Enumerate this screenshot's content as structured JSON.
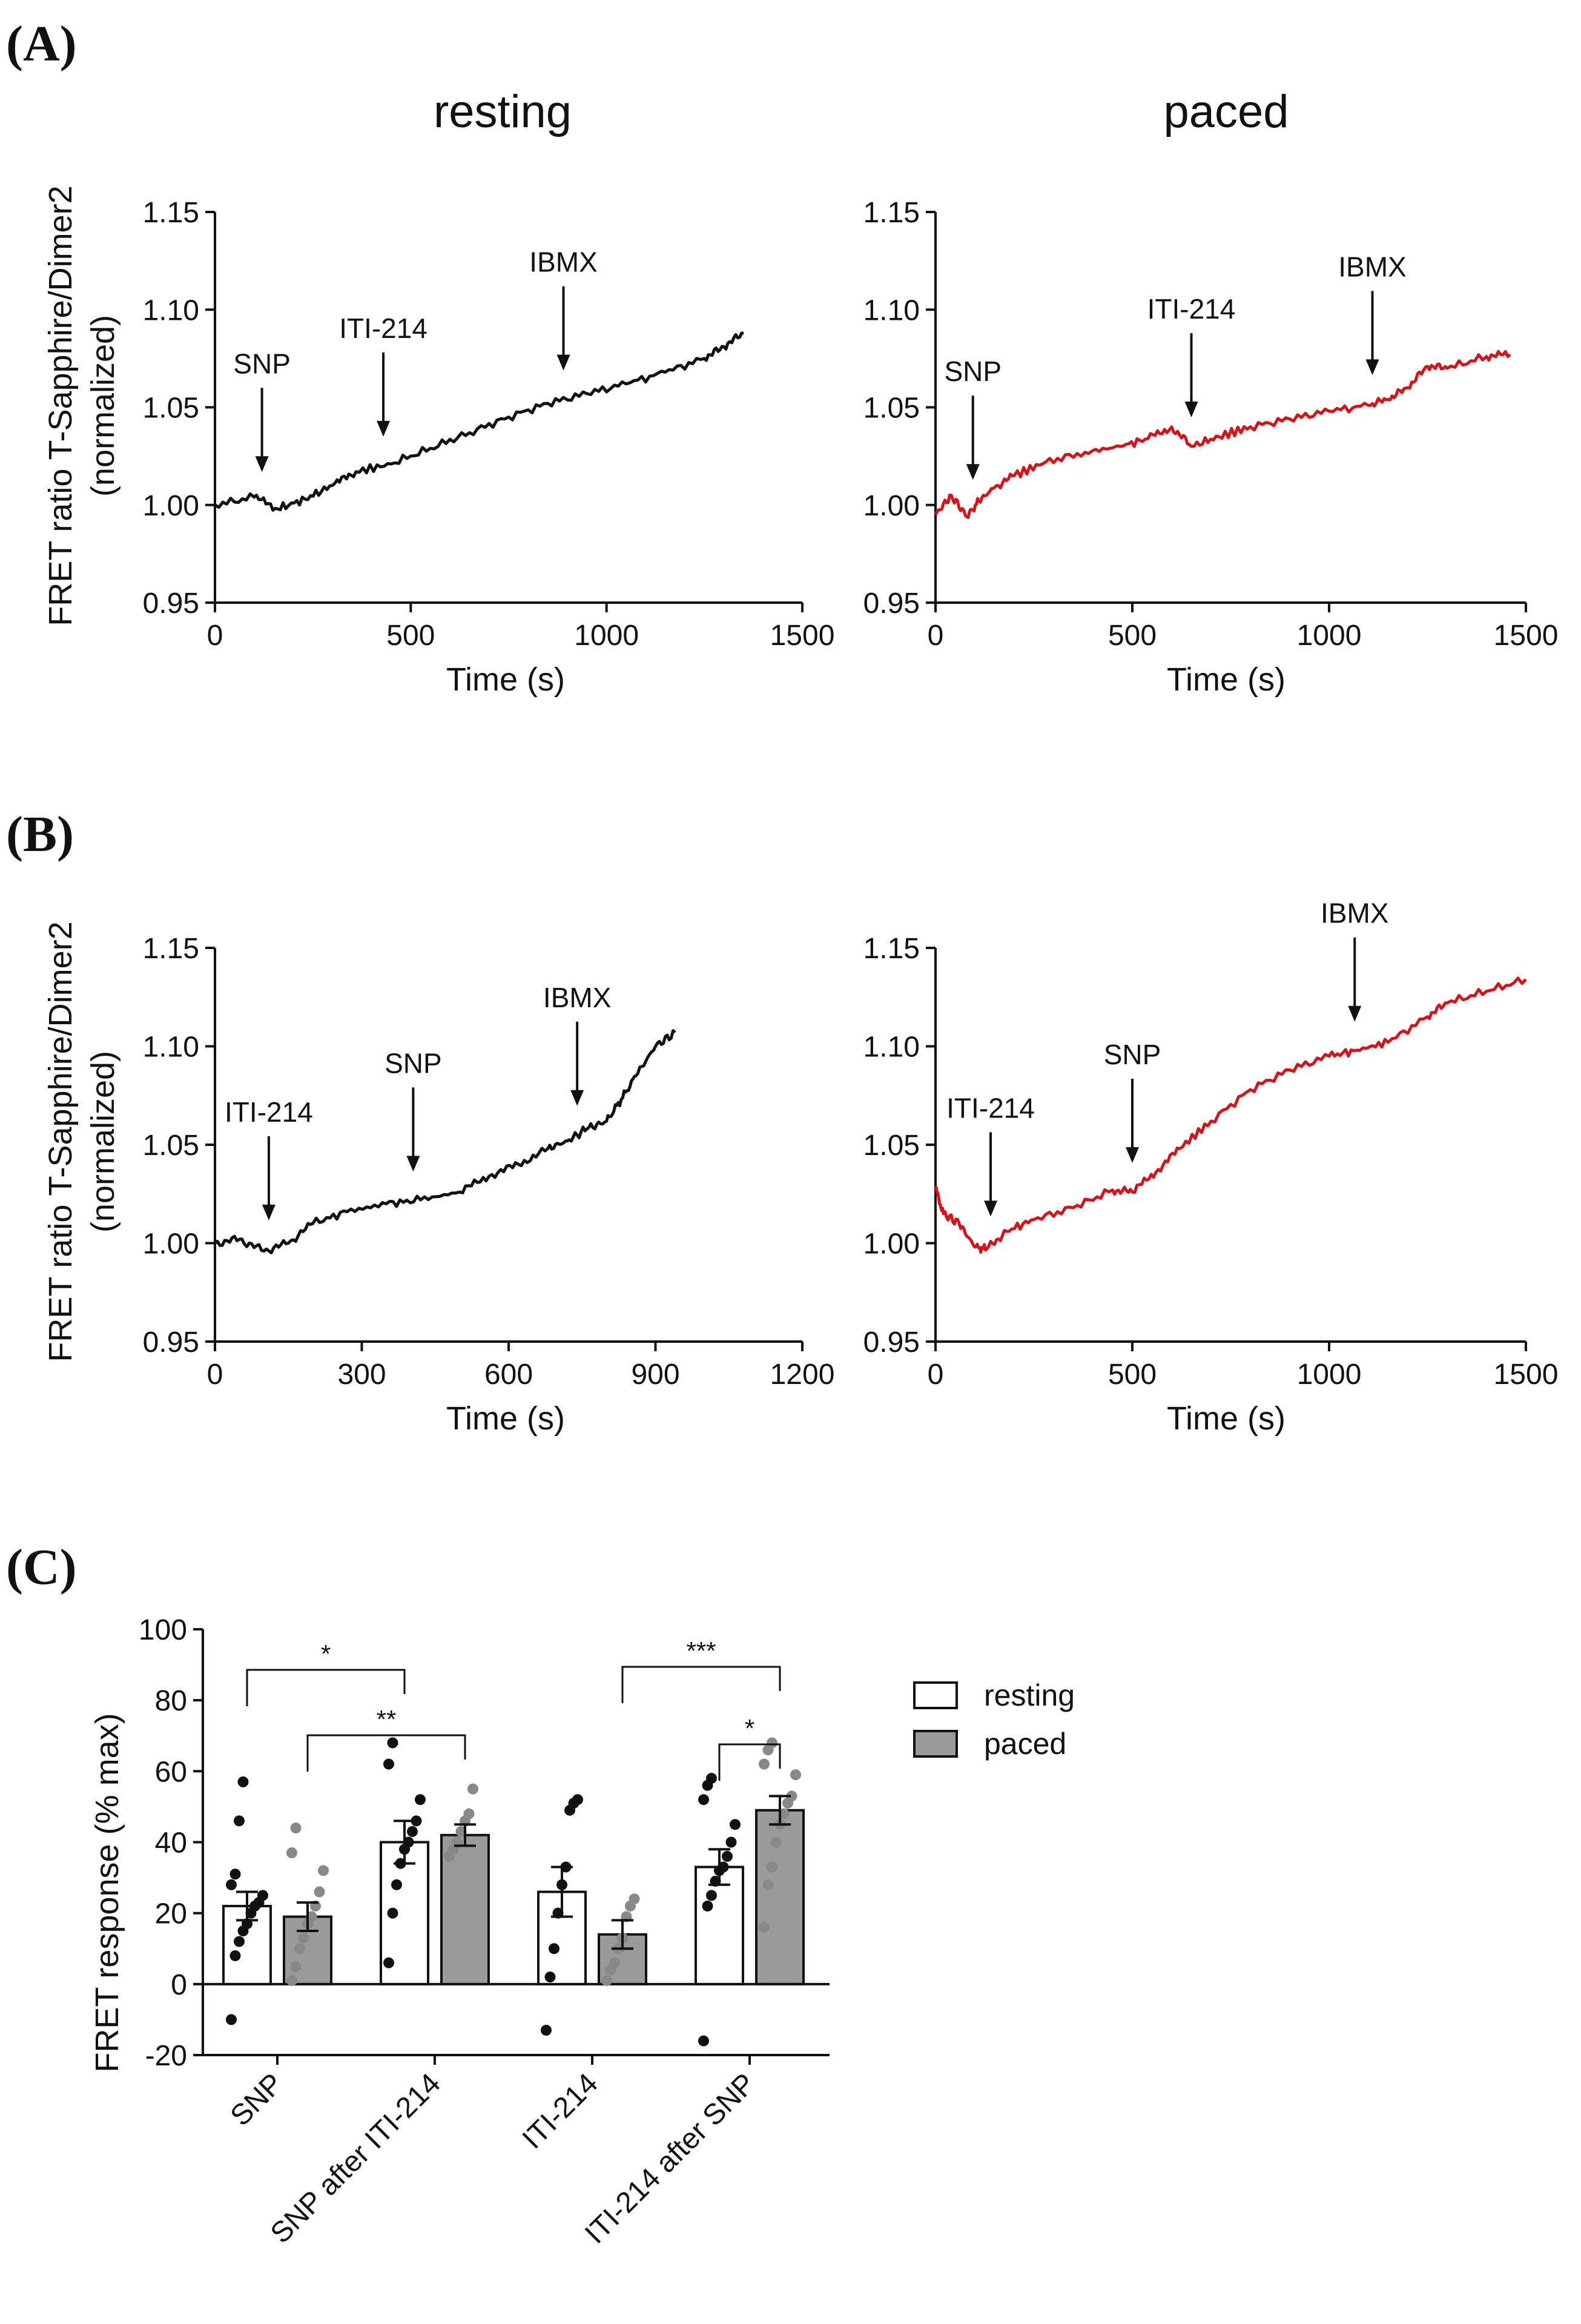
{
  "panel_labels": {
    "A": "(A)",
    "B": "(B)",
    "C": "(C)"
  },
  "condition_titles": {
    "left": "resting",
    "right": "paced"
  },
  "axis_text": {
    "fret_ylabel_1": "FRET ratio T-Sapphire/Dimer2",
    "fret_ylabel_2": "(normalized)",
    "time_xlabel": "Time (s)",
    "response_ylabel": "FRET response (% max)"
  },
  "chart_data": [
    {
      "id": "A_resting",
      "type": "line",
      "panel": "A",
      "condition": "resting",
      "xlabel": "Time (s)",
      "ylabel": "FRET ratio T-Sapphire/Dimer2 (normalized)",
      "xlim": [
        0,
        1500
      ],
      "ylim": [
        0.95,
        1.15
      ],
      "xticks": [
        "0",
        "500",
        "1000",
        "1500"
      ],
      "yticks": [
        "0.95",
        "1.00",
        "1.05",
        "1.10",
        "1.15"
      ],
      "color": "#111111",
      "series": [
        {
          "name": "resting",
          "x": [
            0,
            100,
            160,
            230,
            300,
            360,
            450,
            550,
            650,
            750,
            850,
            950,
            1050,
            1150,
            1250,
            1300,
            1350
          ],
          "y": [
            1.0,
            1.004,
            0.998,
            1.003,
            1.01,
            1.017,
            1.021,
            1.029,
            1.037,
            1.045,
            1.052,
            1.057,
            1.062,
            1.068,
            1.075,
            1.081,
            1.088
          ]
        }
      ],
      "annotations": [
        {
          "text": "SNP",
          "x": 120
        },
        {
          "text": "ITI-214",
          "x": 430
        },
        {
          "text": "IBMX",
          "x": 890
        }
      ]
    },
    {
      "id": "A_paced",
      "type": "line",
      "panel": "A",
      "condition": "paced",
      "xlabel": "Time (s)",
      "ylabel": "",
      "xlim": [
        0,
        1500
      ],
      "ylim": [
        0.95,
        1.15
      ],
      "xticks": [
        "0",
        "500",
        "1000",
        "1500"
      ],
      "yticks": [
        "0.95",
        "1.00",
        "1.05",
        "1.10",
        "1.15"
      ],
      "color": "#d0161c",
      "series": [
        {
          "name": "paced",
          "x": [
            0,
            40,
            80,
            110,
            150,
            200,
            280,
            380,
            470,
            540,
            600,
            650,
            720,
            800,
            900,
            1000,
            1100,
            1150,
            1200,
            1250,
            1300,
            1400,
            1460
          ],
          "y": [
            0.995,
            1.005,
            0.994,
            1.002,
            1.009,
            1.015,
            1.022,
            1.027,
            1.03,
            1.034,
            1.04,
            1.03,
            1.035,
            1.04,
            1.044,
            1.048,
            1.051,
            1.054,
            1.06,
            1.071,
            1.07,
            1.076,
            1.077
          ]
        }
      ],
      "annotations": [
        {
          "text": "SNP",
          "x": 95
        },
        {
          "text": "ITI-214",
          "x": 650
        },
        {
          "text": "IBMX",
          "x": 1110
        }
      ]
    },
    {
      "id": "B_resting",
      "type": "line",
      "panel": "B",
      "condition": "resting",
      "xlabel": "Time (s)",
      "ylabel": "FRET ratio T-Sapphire/Dimer2 (normalized)",
      "xlim": [
        0,
        1200
      ],
      "ylim": [
        0.95,
        1.15
      ],
      "xticks": [
        "0",
        "300",
        "600",
        "900",
        "1200"
      ],
      "yticks": [
        "0.95",
        "1.00",
        "1.05",
        "1.10",
        "1.15"
      ],
      "color": "#111111",
      "series": [
        {
          "name": "resting",
          "x": [
            0,
            50,
            100,
            150,
            200,
            270,
            350,
            420,
            500,
            560,
            620,
            680,
            720,
            760,
            800,
            830,
            860,
            900,
            940
          ],
          "y": [
            1.0,
            1.002,
            0.996,
            1.0,
            1.01,
            1.016,
            1.02,
            1.022,
            1.026,
            1.034,
            1.04,
            1.048,
            1.052,
            1.058,
            1.062,
            1.073,
            1.085,
            1.1,
            1.107
          ]
        }
      ],
      "annotations": [
        {
          "text": "ITI-214",
          "x": 110
        },
        {
          "text": "SNP",
          "x": 405
        },
        {
          "text": "IBMX",
          "x": 740
        }
      ]
    },
    {
      "id": "B_paced",
      "type": "line",
      "panel": "B",
      "condition": "paced",
      "xlabel": "Time (s)",
      "ylabel": "",
      "xlim": [
        0,
        1500
      ],
      "ylim": [
        0.95,
        1.15
      ],
      "xticks": [
        "0",
        "500",
        "1000",
        "1500"
      ],
      "yticks": [
        "0.95",
        "1.00",
        "1.05",
        "1.10",
        "1.15"
      ],
      "color": "#d0161c",
      "series": [
        {
          "name": "paced",
          "x": [
            0,
            20,
            60,
            100,
            130,
            180,
            250,
            350,
            450,
            500,
            560,
            620,
            700,
            800,
            900,
            1000,
            1070,
            1150,
            1250,
            1300,
            1400,
            1500
          ],
          "y": [
            1.028,
            1.015,
            1.01,
            0.998,
            0.997,
            1.006,
            1.012,
            1.018,
            1.027,
            1.026,
            1.036,
            1.048,
            1.062,
            1.078,
            1.088,
            1.095,
            1.098,
            1.102,
            1.115,
            1.122,
            1.128,
            1.134
          ]
        }
      ],
      "annotations": [
        {
          "text": "ITI-214",
          "x": 140
        },
        {
          "text": "SNP",
          "x": 500
        },
        {
          "text": "IBMX",
          "x": 1065
        }
      ]
    },
    {
      "id": "C",
      "type": "bar",
      "panel": "C",
      "ylabel": "FRET response (% max)",
      "ylim": [
        -20,
        100
      ],
      "yticks": [
        "-20",
        "0",
        "20",
        "40",
        "60",
        "80",
        "100"
      ],
      "categories": [
        "SNP",
        "SNP after ITI-214",
        "ITI-214",
        "ITI-214 after SNP"
      ],
      "series": [
        {
          "name": "resting",
          "fill": "#ffffff",
          "dot_color": "#111111",
          "values": [
            22,
            40,
            26,
            33
          ],
          "sem": [
            4,
            6,
            7,
            5
          ],
          "points": [
            [
              -10,
              8,
              12,
              15,
              17,
              20,
              22,
              23,
              25,
              28,
              31,
              46,
              57
            ],
            [
              6,
              20,
              28,
              34,
              38,
              40,
              43,
              46,
              52,
              62,
              68
            ],
            [
              -13,
              2,
              10,
              20,
              28,
              33,
              49,
              51,
              52
            ],
            [
              -16,
              22,
              25,
              29,
              32,
              33,
              36,
              40,
              45,
              52,
              56,
              58
            ]
          ]
        },
        {
          "name": "paced",
          "fill": "#9a9a9a",
          "dot_color": "#888888",
          "values": [
            19,
            42,
            14,
            49
          ],
          "sem": [
            4,
            3,
            4,
            4
          ],
          "points": [
            [
              1,
              5,
              10,
              13,
              17,
              19,
              22,
              26,
              32,
              37,
              44
            ],
            [
              36,
              38,
              40,
              43,
              46,
              48,
              55
            ],
            [
              1,
              4,
              6,
              10,
              13,
              19,
              22,
              24
            ],
            [
              16,
              28,
              33,
              40,
              45,
              48,
              51,
              53,
              59,
              62,
              66,
              68
            ]
          ]
        }
      ],
      "significance": [
        {
          "from": "SNP|resting",
          "to": "SNP after ITI-214|resting",
          "label": "*"
        },
        {
          "from": "SNP|paced",
          "to": "SNP after ITI-214|paced",
          "label": "**"
        },
        {
          "from": "ITI-214|paced",
          "to": "ITI-214 after SNP|paced",
          "label": "***"
        },
        {
          "from": "ITI-214 after SNP|resting",
          "to": "ITI-214 after SNP|paced",
          "label": "*"
        }
      ],
      "legend": [
        "resting",
        "paced"
      ]
    }
  ]
}
